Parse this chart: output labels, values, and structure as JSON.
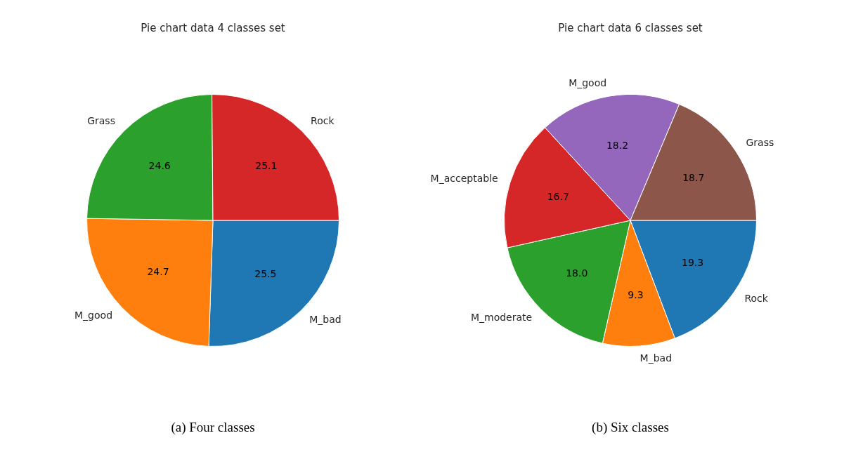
{
  "chart_data": [
    {
      "type": "pie",
      "title": "Pie chart data 4 classes set",
      "categories": [
        "M_bad",
        "M_good",
        "Grass",
        "Rock"
      ],
      "values": [
        25.5,
        24.7,
        24.6,
        25.1
      ],
      "colors": [
        "#1f77b4",
        "#ff7f0e",
        "#2ca02c",
        "#d62728"
      ],
      "value_labels": [
        "25.5",
        "24.7",
        "24.6",
        "25.1"
      ],
      "legend": false,
      "annotations": [
        "(a) Four classes"
      ]
    },
    {
      "type": "pie",
      "title": "Pie chart data 6 classes set",
      "categories": [
        "Rock",
        "M_bad",
        "M_moderate",
        "M_acceptable",
        "M_good",
        "Grass"
      ],
      "values": [
        19.3,
        9.3,
        18.0,
        16.7,
        18.2,
        18.7
      ],
      "colors": [
        "#1f77b4",
        "#ff7f0e",
        "#2ca02c",
        "#d62728",
        "#9467bd",
        "#8c564b"
      ],
      "value_labels": [
        "19.3",
        "9.3",
        "18.0",
        "16.7",
        "18.2",
        "18.7"
      ],
      "legend": false,
      "annotations": [
        "(b) Six classes"
      ]
    }
  ]
}
